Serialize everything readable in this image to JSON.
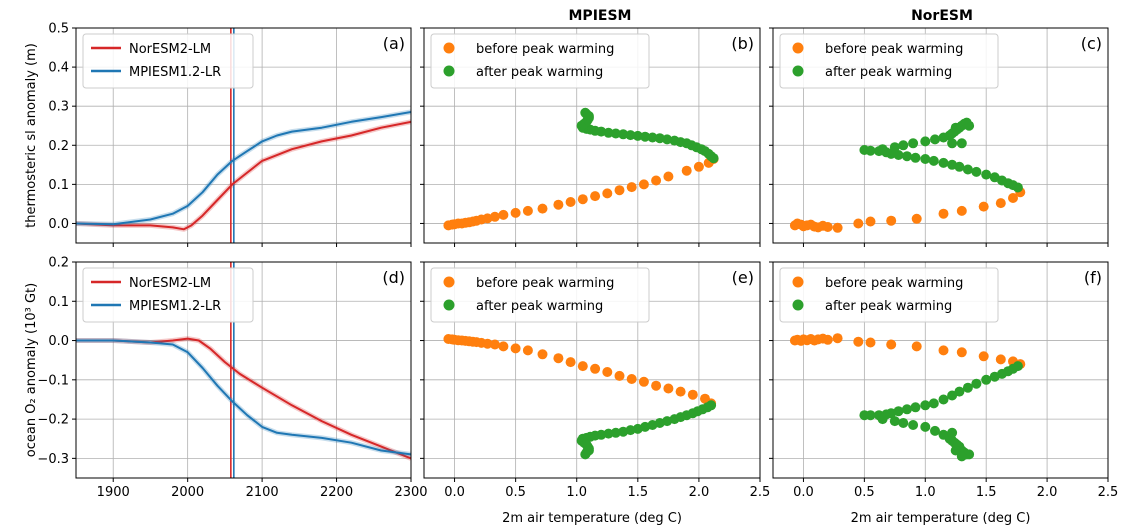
{
  "figure": {
    "column_titles": [
      "MPIESM",
      "NorESM"
    ],
    "colors": {
      "noresm": "#d62728",
      "mpiesm": "#1f77b4",
      "before": "#ff7f0e",
      "after": "#2ca02c",
      "grid": "#b0b0b0"
    }
  },
  "chart_data": [
    {
      "id": "a",
      "panel_label": "(a)",
      "type": "line",
      "title": "",
      "xlabel": "",
      "ylabel": "thermosteric sl anomaly (m)",
      "xlim": [
        1850,
        2300
      ],
      "ylim": [
        -0.05,
        0.5
      ],
      "xticks": [
        1900,
        2000,
        2100,
        2200,
        2300
      ],
      "yticks": [
        0.0,
        0.1,
        0.2,
        0.3,
        0.4,
        0.5
      ],
      "yticklabels": [
        "0.0",
        "0.1",
        "0.2",
        "0.3",
        "0.4",
        "0.5"
      ],
      "show_xticklabels": false,
      "show_yticklabels": true,
      "grid": true,
      "legend": "top-left",
      "vlines": [
        {
          "x": 2058,
          "color": "#d62728"
        },
        {
          "x": 2062,
          "color": "#1f77b4"
        }
      ],
      "series": [
        {
          "name": "NorESM2-LM",
          "color": "#d62728",
          "x": [
            1850,
            1900,
            1950,
            1980,
            1995,
            2005,
            2020,
            2040,
            2060,
            2080,
            2100,
            2140,
            2180,
            2220,
            2260,
            2300
          ],
          "y": [
            0.0,
            -0.005,
            -0.005,
            -0.01,
            -0.015,
            -0.005,
            0.02,
            0.06,
            0.1,
            0.13,
            0.16,
            0.19,
            0.21,
            0.225,
            0.245,
            0.26
          ]
        },
        {
          "name": "MPIESM1.2-LR",
          "color": "#1f77b4",
          "x": [
            1850,
            1900,
            1950,
            1980,
            2000,
            2020,
            2040,
            2060,
            2080,
            2100,
            2120,
            2140,
            2180,
            2220,
            2260,
            2300
          ],
          "y": [
            0.0,
            -0.002,
            0.01,
            0.025,
            0.045,
            0.08,
            0.125,
            0.16,
            0.185,
            0.21,
            0.225,
            0.235,
            0.245,
            0.26,
            0.272,
            0.285
          ]
        }
      ]
    },
    {
      "id": "b",
      "panel_label": "(b)",
      "type": "scatter",
      "title": "MPIESM",
      "xlabel": "",
      "ylabel": "",
      "xlim": [
        -0.25,
        2.5
      ],
      "ylim": [
        -0.05,
        0.5
      ],
      "xticks": [
        0.0,
        0.5,
        1.0,
        1.5,
        2.0,
        2.5
      ],
      "yticks": [
        0.0,
        0.1,
        0.2,
        0.3,
        0.4,
        0.5
      ],
      "show_xticklabels": false,
      "show_yticklabels": false,
      "grid": true,
      "legend": "top-left",
      "series": [
        {
          "name": "before peak warming",
          "color": "#ff7f0e",
          "x": [
            -0.05,
            -0.02,
            0.0,
            0.03,
            0.06,
            0.09,
            0.12,
            0.15,
            0.18,
            0.22,
            0.27,
            0.33,
            0.4,
            0.5,
            0.6,
            0.72,
            0.85,
            0.95,
            1.05,
            1.15,
            1.25,
            1.35,
            1.45,
            1.55,
            1.65,
            1.75,
            1.9,
            2.0,
            2.08,
            2.12
          ],
          "y": [
            -0.005,
            -0.003,
            -0.002,
            0.0,
            0.0,
            0.002,
            0.003,
            0.005,
            0.007,
            0.01,
            0.013,
            0.017,
            0.022,
            0.027,
            0.032,
            0.038,
            0.048,
            0.055,
            0.062,
            0.07,
            0.077,
            0.085,
            0.093,
            0.1,
            0.11,
            0.12,
            0.135,
            0.145,
            0.155,
            0.165
          ]
        },
        {
          "name": "after peak warming",
          "color": "#2ca02c",
          "x": [
            2.12,
            2.1,
            2.08,
            2.05,
            2.02,
            1.98,
            1.94,
            1.9,
            1.85,
            1.8,
            1.74,
            1.68,
            1.62,
            1.56,
            1.5,
            1.44,
            1.38,
            1.32,
            1.26,
            1.2,
            1.15,
            1.11,
            1.08,
            1.05,
            1.04,
            1.06,
            1.08,
            1.09,
            1.1,
            1.1,
            1.08,
            1.07
          ],
          "y": [
            0.167,
            0.172,
            0.178,
            0.185,
            0.19,
            0.195,
            0.2,
            0.205,
            0.208,
            0.212,
            0.215,
            0.218,
            0.22,
            0.222,
            0.224,
            0.226,
            0.228,
            0.23,
            0.232,
            0.235,
            0.237,
            0.24,
            0.242,
            0.245,
            0.25,
            0.255,
            0.26,
            0.265,
            0.27,
            0.275,
            0.28,
            0.283
          ]
        }
      ]
    },
    {
      "id": "c",
      "panel_label": "(c)",
      "type": "scatter",
      "title": "NorESM",
      "xlabel": "",
      "ylabel": "",
      "xlim": [
        -0.25,
        2.5
      ],
      "ylim": [
        -0.05,
        0.5
      ],
      "xticks": [
        0.0,
        0.5,
        1.0,
        1.5,
        2.0,
        2.5
      ],
      "yticks": [
        0.0,
        0.1,
        0.2,
        0.3,
        0.4,
        0.5
      ],
      "show_xticklabels": false,
      "show_yticklabels": false,
      "grid": true,
      "legend": "top-left",
      "series": [
        {
          "name": "before peak warming",
          "color": "#ff7f0e",
          "x": [
            -0.07,
            -0.05,
            -0.02,
            0.0,
            0.03,
            0.06,
            0.09,
            0.12,
            0.16,
            0.2,
            0.28,
            0.45,
            0.55,
            0.72,
            0.93,
            1.15,
            1.3,
            1.48,
            1.62,
            1.72,
            1.78
          ],
          "y": [
            -0.005,
            0.0,
            -0.003,
            -0.007,
            -0.005,
            -0.003,
            -0.008,
            -0.01,
            -0.006,
            -0.009,
            -0.011,
            0.0,
            0.005,
            0.007,
            0.012,
            0.025,
            0.032,
            0.043,
            0.052,
            0.065,
            0.08
          ]
        },
        {
          "name": "after peak warming",
          "color": "#2ca02c",
          "x": [
            1.76,
            1.72,
            1.68,
            1.63,
            1.57,
            1.5,
            1.42,
            1.35,
            1.28,
            1.22,
            1.15,
            1.07,
            1.0,
            0.92,
            0.85,
            0.78,
            0.72,
            0.68,
            0.62,
            0.55,
            0.5,
            0.65,
            0.75,
            0.82,
            0.9,
            1.0,
            1.08,
            1.15,
            1.2,
            1.22,
            1.24,
            1.26,
            1.28,
            1.3,
            1.32,
            1.34,
            1.36,
            1.25,
            1.22,
            1.3
          ],
          "y": [
            0.092,
            0.098,
            0.103,
            0.11,
            0.118,
            0.125,
            0.132,
            0.138,
            0.145,
            0.15,
            0.155,
            0.16,
            0.165,
            0.168,
            0.172,
            0.175,
            0.178,
            0.182,
            0.185,
            0.186,
            0.188,
            0.19,
            0.195,
            0.2,
            0.205,
            0.21,
            0.215,
            0.22,
            0.225,
            0.23,
            0.235,
            0.24,
            0.245,
            0.25,
            0.255,
            0.258,
            0.25,
            0.245,
            0.205,
            0.205
          ]
        }
      ]
    },
    {
      "id": "d",
      "panel_label": "(d)",
      "type": "line",
      "title": "",
      "xlabel": "",
      "ylabel": "ocean O₂ anomaly (10³ Gt)",
      "xlim": [
        1850,
        2300
      ],
      "ylim": [
        -0.35,
        0.2
      ],
      "xticks": [
        1900,
        2000,
        2100,
        2200,
        2300
      ],
      "xticklabels": [
        "1900",
        "2000",
        "2100",
        "2200",
        "2300"
      ],
      "yticks": [
        -0.3,
        -0.2,
        -0.1,
        0.0,
        0.1,
        0.2
      ],
      "yticklabels": [
        "−0.3",
        "−0.2",
        "−0.1",
        "0.0",
        "0.1",
        "0.2"
      ],
      "show_xticklabels": true,
      "show_yticklabels": true,
      "grid": true,
      "legend": "top-left",
      "vlines": [
        {
          "x": 2058,
          "color": "#d62728"
        },
        {
          "x": 2062,
          "color": "#1f77b4"
        }
      ],
      "series": [
        {
          "name": "NorESM2-LM",
          "color": "#d62728",
          "x": [
            1850,
            1900,
            1950,
            1980,
            2000,
            2015,
            2030,
            2050,
            2070,
            2100,
            2140,
            2180,
            2220,
            2260,
            2300
          ],
          "y": [
            0.0,
            0.0,
            -0.005,
            0.0,
            0.005,
            0.0,
            -0.02,
            -0.055,
            -0.085,
            -0.12,
            -0.165,
            -0.205,
            -0.24,
            -0.27,
            -0.3
          ]
        },
        {
          "name": "MPIESM1.2-LR",
          "color": "#1f77b4",
          "x": [
            1850,
            1900,
            1950,
            1980,
            2000,
            2020,
            2040,
            2060,
            2080,
            2100,
            2120,
            2140,
            2180,
            2220,
            2260,
            2300
          ],
          "y": [
            0.0,
            0.0,
            -0.005,
            -0.01,
            -0.03,
            -0.07,
            -0.115,
            -0.155,
            -0.19,
            -0.22,
            -0.235,
            -0.24,
            -0.248,
            -0.26,
            -0.28,
            -0.29
          ]
        }
      ]
    },
    {
      "id": "e",
      "panel_label": "(e)",
      "type": "scatter",
      "title": "",
      "xlabel": "2m air temperature (deg C)",
      "ylabel": "",
      "xlim": [
        -0.25,
        2.5
      ],
      "ylim": [
        -0.35,
        0.2
      ],
      "xticks": [
        0.0,
        0.5,
        1.0,
        1.5,
        2.0,
        2.5
      ],
      "xticklabels": [
        "0.0",
        "0.5",
        "1.0",
        "1.5",
        "2.0",
        "2.5"
      ],
      "yticks": [
        -0.3,
        -0.2,
        -0.1,
        0.0,
        0.1,
        0.2
      ],
      "show_xticklabels": true,
      "show_yticklabels": false,
      "grid": true,
      "legend": "top-left",
      "series": [
        {
          "name": "before peak warming",
          "color": "#ff7f0e",
          "x": [
            -0.05,
            -0.02,
            0.0,
            0.03,
            0.06,
            0.09,
            0.12,
            0.15,
            0.18,
            0.22,
            0.27,
            0.33,
            0.4,
            0.5,
            0.6,
            0.72,
            0.85,
            0.95,
            1.05,
            1.15,
            1.25,
            1.35,
            1.45,
            1.55,
            1.65,
            1.75,
            1.85,
            1.95,
            2.05,
            2.1
          ],
          "y": [
            0.004,
            0.003,
            0.002,
            0.001,
            0.0,
            -0.001,
            -0.002,
            -0.003,
            -0.004,
            -0.006,
            -0.008,
            -0.01,
            -0.015,
            -0.02,
            -0.025,
            -0.035,
            -0.045,
            -0.055,
            -0.065,
            -0.072,
            -0.08,
            -0.09,
            -0.098,
            -0.105,
            -0.115,
            -0.122,
            -0.13,
            -0.138,
            -0.148,
            -0.16
          ]
        },
        {
          "name": "after peak warming",
          "color": "#2ca02c",
          "x": [
            2.1,
            2.07,
            2.03,
            1.99,
            1.95,
            1.9,
            1.85,
            1.8,
            1.74,
            1.68,
            1.62,
            1.56,
            1.5,
            1.44,
            1.38,
            1.32,
            1.26,
            1.2,
            1.15,
            1.11,
            1.08,
            1.05,
            1.04,
            1.06,
            1.08,
            1.09,
            1.1,
            1.1,
            1.08,
            1.07
          ],
          "y": [
            -0.165,
            -0.17,
            -0.175,
            -0.18,
            -0.185,
            -0.19,
            -0.195,
            -0.2,
            -0.205,
            -0.21,
            -0.215,
            -0.22,
            -0.225,
            -0.228,
            -0.232,
            -0.235,
            -0.237,
            -0.24,
            -0.242,
            -0.245,
            -0.248,
            -0.25,
            -0.255,
            -0.26,
            -0.265,
            -0.27,
            -0.275,
            -0.28,
            -0.285,
            -0.29
          ]
        }
      ]
    },
    {
      "id": "f",
      "panel_label": "(f)",
      "type": "scatter",
      "title": "",
      "xlabel": "2m air temperature (deg C)",
      "ylabel": "",
      "xlim": [
        -0.25,
        2.5
      ],
      "ylim": [
        -0.35,
        0.2
      ],
      "xticks": [
        0.0,
        0.5,
        1.0,
        1.5,
        2.0,
        2.5
      ],
      "xticklabels": [
        "0.0",
        "0.5",
        "1.0",
        "1.5",
        "2.0",
        "2.5"
      ],
      "yticks": [
        -0.3,
        -0.2,
        -0.1,
        0.0,
        0.1,
        0.2
      ],
      "show_xticklabels": true,
      "show_yticklabels": false,
      "grid": true,
      "legend": "top-left",
      "series": [
        {
          "name": "before peak warming",
          "color": "#ff7f0e",
          "x": [
            -0.07,
            -0.05,
            -0.02,
            0.0,
            0.03,
            0.06,
            0.09,
            0.12,
            0.16,
            0.2,
            0.28,
            0.45,
            0.55,
            0.72,
            0.93,
            1.15,
            1.3,
            1.48,
            1.62,
            1.72,
            1.78
          ],
          "y": [
            0.0,
            0.002,
            -0.001,
            0.003,
            0.001,
            0.004,
            0.0,
            0.003,
            0.005,
            0.002,
            0.006,
            -0.003,
            -0.005,
            -0.01,
            -0.015,
            -0.025,
            -0.03,
            -0.04,
            -0.048,
            -0.053,
            -0.06
          ]
        },
        {
          "name": "after peak warming",
          "color": "#2ca02c",
          "x": [
            1.76,
            1.72,
            1.68,
            1.63,
            1.57,
            1.5,
            1.42,
            1.35,
            1.28,
            1.22,
            1.15,
            1.07,
            1.0,
            0.92,
            0.85,
            0.78,
            0.72,
            0.68,
            0.62,
            0.55,
            0.5,
            0.65,
            0.75,
            0.82,
            0.9,
            1.0,
            1.08,
            1.15,
            1.2,
            1.22,
            1.24,
            1.26,
            1.28,
            1.3,
            1.32,
            1.34,
            1.36,
            1.25,
            1.22,
            1.3
          ],
          "y": [
            -0.065,
            -0.072,
            -0.078,
            -0.085,
            -0.092,
            -0.1,
            -0.11,
            -0.12,
            -0.13,
            -0.14,
            -0.15,
            -0.16,
            -0.165,
            -0.17,
            -0.175,
            -0.18,
            -0.185,
            -0.188,
            -0.19,
            -0.19,
            -0.19,
            -0.2,
            -0.205,
            -0.21,
            -0.215,
            -0.22,
            -0.23,
            -0.24,
            -0.25,
            -0.255,
            -0.26,
            -0.265,
            -0.27,
            -0.28,
            -0.285,
            -0.29,
            -0.29,
            -0.28,
            -0.235,
            -0.295
          ]
        }
      ]
    }
  ]
}
